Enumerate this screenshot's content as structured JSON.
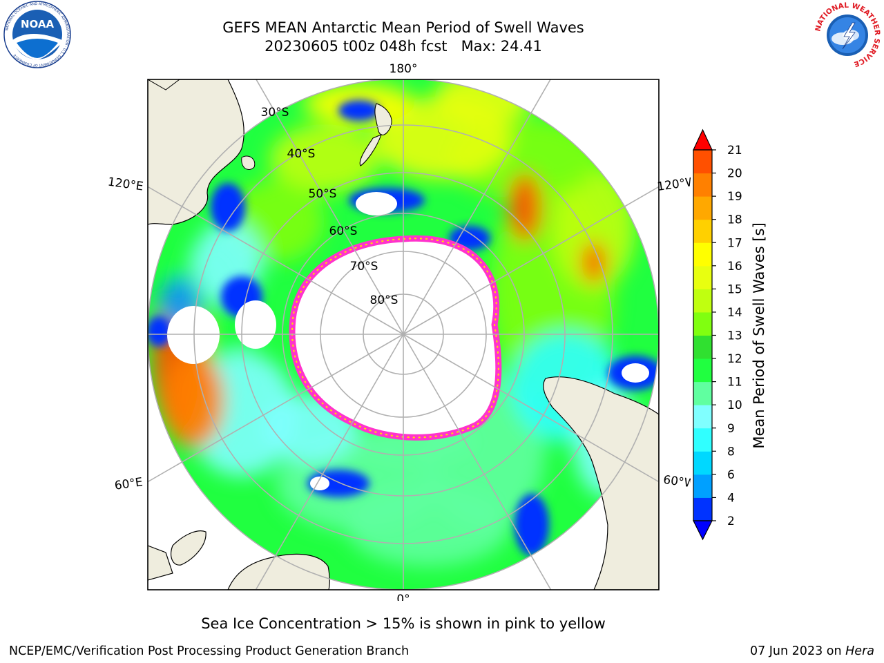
{
  "header": {
    "title_line1": "GEFS MEAN Antarctic Mean Period of Swell Waves",
    "title_line2": "20230605 t00z 048h fcst   Max: 24.41"
  },
  "logos": {
    "left": "noaa-logo",
    "right": "national-weather-service-logo",
    "left_text": "NOAA",
    "left_ring_text": "NATIONAL OCEANIC AND ATMOSPHERIC ADMINISTRATION · U.S. DEPARTMENT OF COMMERCE",
    "right_ring_text": "NATIONAL WEATHER SERVICE"
  },
  "map": {
    "projection": "south-polar-stereographic",
    "longitude_labels": [
      "180°",
      "120°E",
      "120°W",
      "60°E",
      "60°W",
      "0°"
    ],
    "latitude_labels": [
      "30°S",
      "40°S",
      "50°S",
      "60°S",
      "70°S",
      "80°S"
    ],
    "colors": {
      "land": "#efedde",
      "grid": "#b0b0b0",
      "sea_ice_edge": "#ff33cc"
    }
  },
  "colorbar": {
    "label": "Mean Period of Swell Waves [s]",
    "ticks": [
      "2",
      "4",
      "6",
      "8",
      "9",
      "10",
      "11",
      "12",
      "13",
      "14",
      "15",
      "16",
      "17",
      "18",
      "19",
      "20",
      "21"
    ],
    "levels": [
      2,
      4,
      6,
      8,
      9,
      10,
      11,
      12,
      13,
      14,
      15,
      16,
      17,
      18,
      19,
      20,
      21
    ],
    "colors": [
      "#0033ff",
      "#00a0ff",
      "#00d8ff",
      "#30ffff",
      "#80ffff",
      "#60ffa0",
      "#20ff40",
      "#30e030",
      "#80ff10",
      "#c0ff10",
      "#e8ff10",
      "#ffff00",
      "#ffd000",
      "#ffa800",
      "#ff8000",
      "#ff5000",
      "#ff2000"
    ],
    "under_color": "#0000ff",
    "over_color": "#ff0000"
  },
  "footer": {
    "note": "Sea Ice Concentration > 15% is shown in pink to yellow",
    "left": "NCEP/EMC/Verification Post Processing Product Generation Branch",
    "right_date": "07 Jun 2023 on ",
    "right_machine": "Hera"
  }
}
